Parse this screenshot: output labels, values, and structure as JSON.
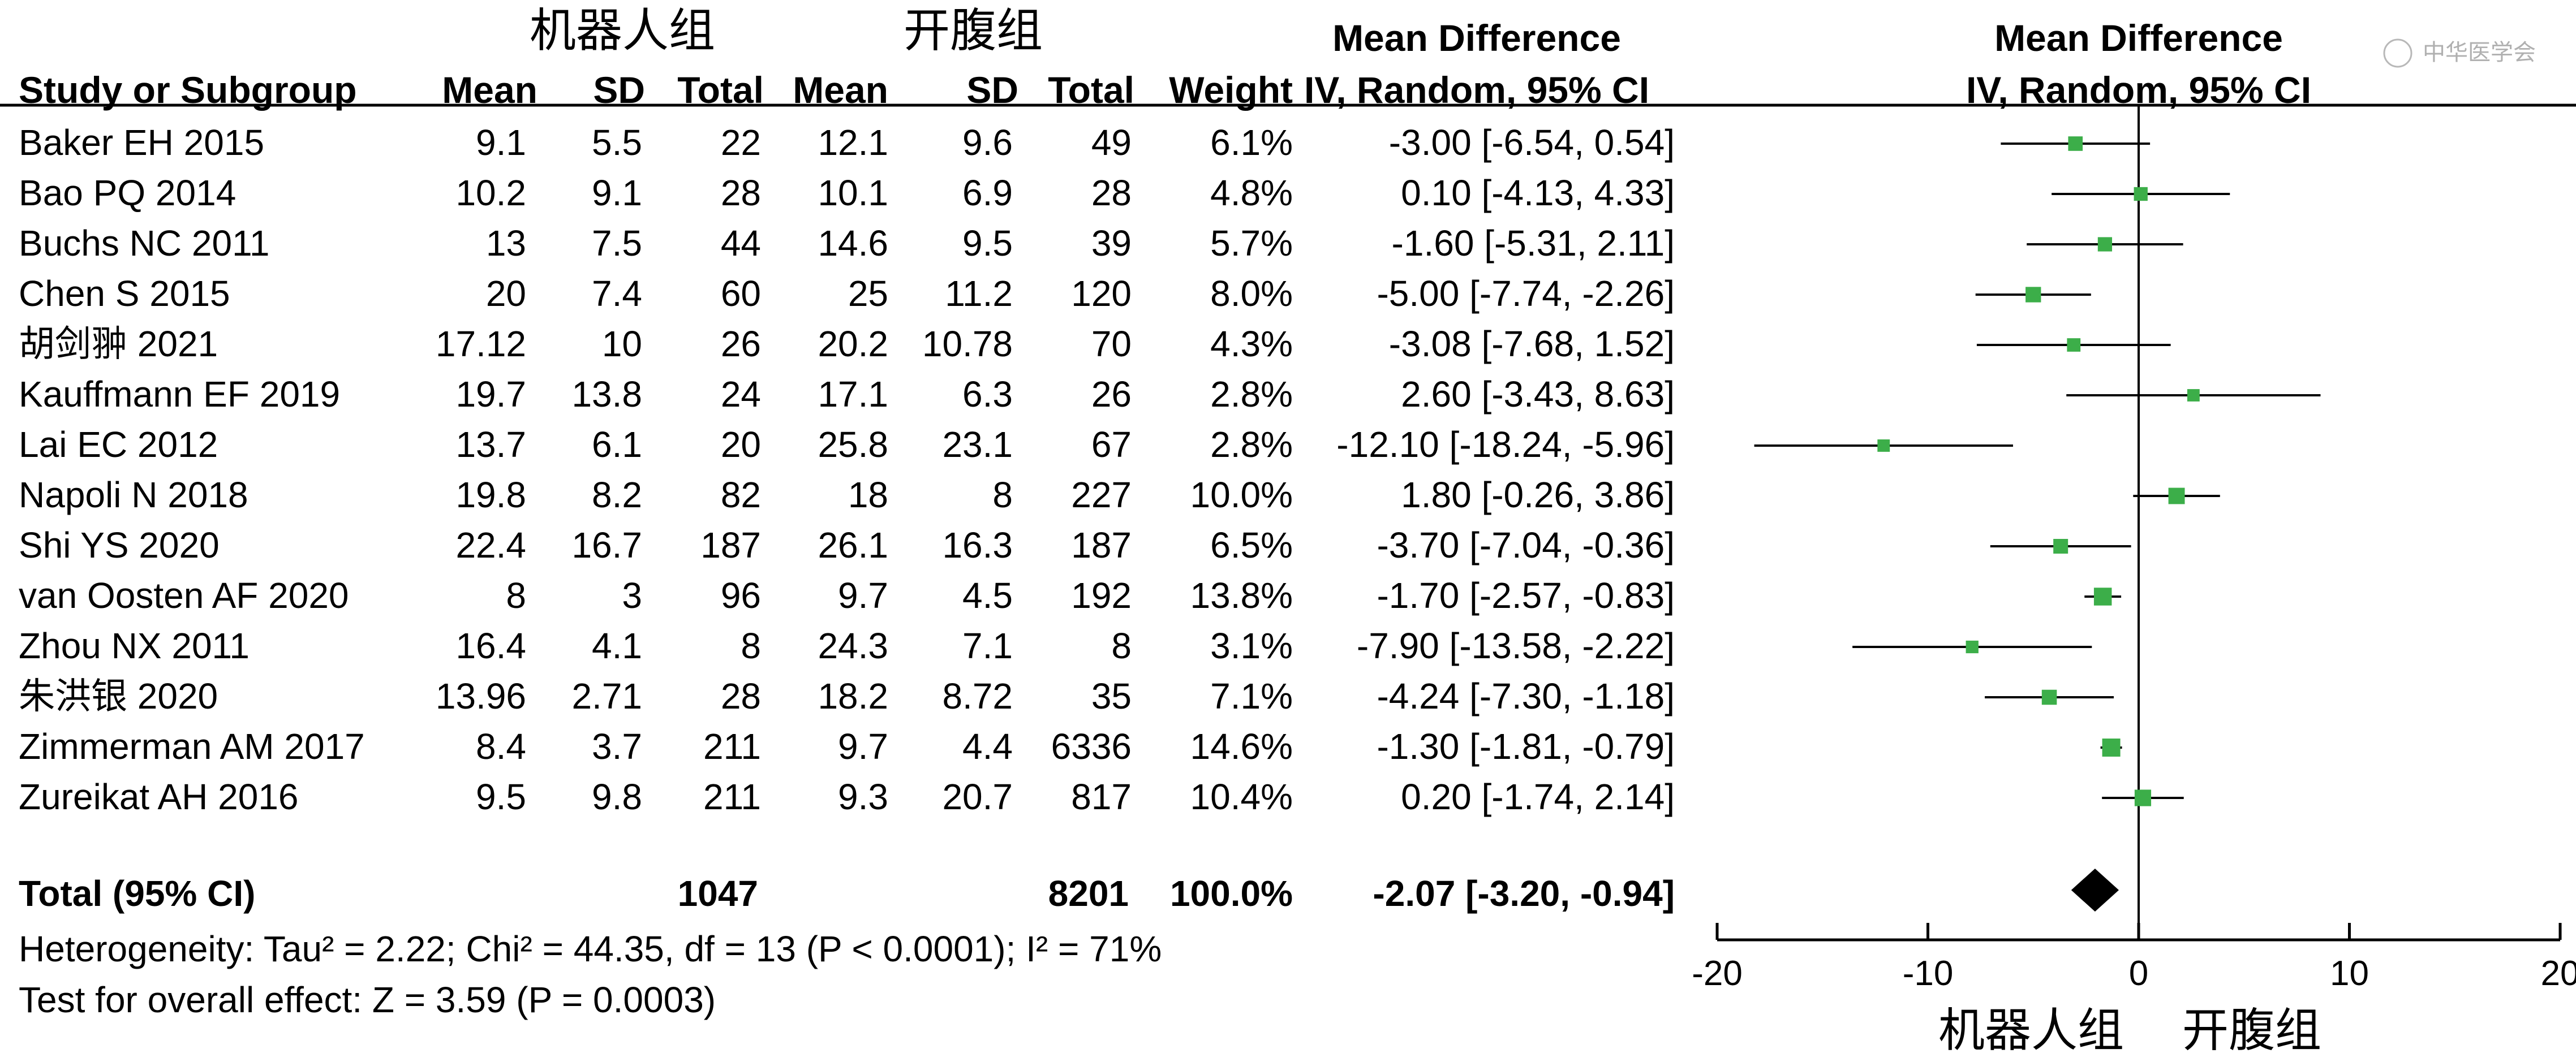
{
  "group_headers": {
    "experimental": "机器人组",
    "control": "开腹组"
  },
  "columns": {
    "study": "Study or Subgroup",
    "exp_mean": "Mean",
    "exp_sd": "SD",
    "exp_total": "Total",
    "ctl_mean": "Mean",
    "ctl_sd": "SD",
    "ctl_total": "Total",
    "weight": "Weight",
    "md_title": "Mean Difference",
    "md_method": "IV, Random, 95% CI",
    "plot_title": "Mean Difference",
    "plot_method": "IV, Random, 95% CI"
  },
  "watermark": "中华医学会",
  "rows": [
    {
      "study": "Baker EH 2015",
      "exp_mean": "9.1",
      "exp_sd": "5.5",
      "exp_total": "22",
      "ctl_mean": "12.1",
      "ctl_sd": "9.6",
      "ctl_total": "49",
      "weight": "6.1%",
      "ci_text": "-3.00 [-6.54, 0.54]"
    },
    {
      "study": "Bao PQ 2014",
      "exp_mean": "10.2",
      "exp_sd": "9.1",
      "exp_total": "28",
      "ctl_mean": "10.1",
      "ctl_sd": "6.9",
      "ctl_total": "28",
      "weight": "4.8%",
      "ci_text": "0.10 [-4.13, 4.33]"
    },
    {
      "study": "Buchs NC 2011",
      "exp_mean": "13",
      "exp_sd": "7.5",
      "exp_total": "44",
      "ctl_mean": "14.6",
      "ctl_sd": "9.5",
      "ctl_total": "39",
      "weight": "5.7%",
      "ci_text": "-1.60 [-5.31, 2.11]"
    },
    {
      "study": "Chen S 2015",
      "exp_mean": "20",
      "exp_sd": "7.4",
      "exp_total": "60",
      "ctl_mean": "25",
      "ctl_sd": "11.2",
      "ctl_total": "120",
      "weight": "8.0%",
      "ci_text": "-5.00 [-7.74, -2.26]"
    },
    {
      "study": "胡剑翀 2021",
      "exp_mean": "17.12",
      "exp_sd": "10",
      "exp_total": "26",
      "ctl_mean": "20.2",
      "ctl_sd": "10.78",
      "ctl_total": "70",
      "weight": "4.3%",
      "ci_text": "-3.08 [-7.68, 1.52]"
    },
    {
      "study": "Kauffmann EF 2019",
      "exp_mean": "19.7",
      "exp_sd": "13.8",
      "exp_total": "24",
      "ctl_mean": "17.1",
      "ctl_sd": "6.3",
      "ctl_total": "26",
      "weight": "2.8%",
      "ci_text": "2.60 [-3.43, 8.63]"
    },
    {
      "study": "Lai EC 2012",
      "exp_mean": "13.7",
      "exp_sd": "6.1",
      "exp_total": "20",
      "ctl_mean": "25.8",
      "ctl_sd": "23.1",
      "ctl_total": "67",
      "weight": "2.8%",
      "ci_text": "-12.10 [-18.24, -5.96]"
    },
    {
      "study": "Napoli N 2018",
      "exp_mean": "19.8",
      "exp_sd": "8.2",
      "exp_total": "82",
      "ctl_mean": "18",
      "ctl_sd": "8",
      "ctl_total": "227",
      "weight": "10.0%",
      "ci_text": "1.80 [-0.26, 3.86]"
    },
    {
      "study": "Shi YS 2020",
      "exp_mean": "22.4",
      "exp_sd": "16.7",
      "exp_total": "187",
      "ctl_mean": "26.1",
      "ctl_sd": "16.3",
      "ctl_total": "187",
      "weight": "6.5%",
      "ci_text": "-3.70 [-7.04, -0.36]"
    },
    {
      "study": "van Oosten AF 2020",
      "exp_mean": "8",
      "exp_sd": "3",
      "exp_total": "96",
      "ctl_mean": "9.7",
      "ctl_sd": "4.5",
      "ctl_total": "192",
      "weight": "13.8%",
      "ci_text": "-1.70 [-2.57, -0.83]"
    },
    {
      "study": "Zhou NX 2011",
      "exp_mean": "16.4",
      "exp_sd": "4.1",
      "exp_total": "8",
      "ctl_mean": "24.3",
      "ctl_sd": "7.1",
      "ctl_total": "8",
      "weight": "3.1%",
      "ci_text": "-7.90 [-13.58, -2.22]"
    },
    {
      "study": "朱洪银 2020",
      "exp_mean": "13.96",
      "exp_sd": "2.71",
      "exp_total": "28",
      "ctl_mean": "18.2",
      "ctl_sd": "8.72",
      "ctl_total": "35",
      "weight": "7.1%",
      "ci_text": "-4.24 [-7.30, -1.18]"
    },
    {
      "study": "Zimmerman AM 2017",
      "exp_mean": "8.4",
      "exp_sd": "3.7",
      "exp_total": "211",
      "ctl_mean": "9.7",
      "ctl_sd": "4.4",
      "ctl_total": "6336",
      "weight": "14.6%",
      "ci_text": "-1.30 [-1.81, -0.79]"
    },
    {
      "study": "Zureikat AH 2016",
      "exp_mean": "9.5",
      "exp_sd": "9.8",
      "exp_total": "211",
      "ctl_mean": "9.3",
      "ctl_sd": "20.7",
      "ctl_total": "817",
      "weight": "10.4%",
      "ci_text": "0.20 [-1.74, 2.14]"
    }
  ],
  "total": {
    "label": "Total (95% CI)",
    "exp_total": "1047",
    "ctl_total": "8201",
    "weight": "100.0%",
    "ci_text": "-2.07 [-3.20, -0.94]"
  },
  "heterogeneity": "Heterogeneity: Tau² = 2.22; Chi² = 44.35, df = 13 (P < 0.0001); I² = 71%",
  "overall_effect": "Test for overall effect: Z = 3.59 (P = 0.0003)",
  "axis_labels": {
    "left": "机器人组",
    "right": "开腹组"
  },
  "colors": {
    "marker": "#3cae49",
    "diamond": "#000000",
    "lines": "#000000"
  },
  "chart_data": {
    "type": "forest",
    "title": "",
    "xlabel": "",
    "ylabel": "",
    "xlim": [
      -20,
      20
    ],
    "xticks": [
      -20,
      -10,
      0,
      10,
      20
    ],
    "reference_line": 0,
    "studies": [
      {
        "name": "Baker EH 2015",
        "md": -3.0,
        "lo": -6.54,
        "hi": 0.54,
        "weight": 6.1
      },
      {
        "name": "Bao PQ 2014",
        "md": 0.1,
        "lo": -4.13,
        "hi": 4.33,
        "weight": 4.8
      },
      {
        "name": "Buchs NC 2011",
        "md": -1.6,
        "lo": -5.31,
        "hi": 2.11,
        "weight": 5.7
      },
      {
        "name": "Chen S 2015",
        "md": -5.0,
        "lo": -7.74,
        "hi": -2.26,
        "weight": 8.0
      },
      {
        "name": "胡剑翀 2021",
        "md": -3.08,
        "lo": -7.68,
        "hi": 1.52,
        "weight": 4.3
      },
      {
        "name": "Kauffmann EF 2019",
        "md": 2.6,
        "lo": -3.43,
        "hi": 8.63,
        "weight": 2.8
      },
      {
        "name": "Lai EC 2012",
        "md": -12.1,
        "lo": -18.24,
        "hi": -5.96,
        "weight": 2.8
      },
      {
        "name": "Napoli N 2018",
        "md": 1.8,
        "lo": -0.26,
        "hi": 3.86,
        "weight": 10.0
      },
      {
        "name": "Shi YS 2020",
        "md": -3.7,
        "lo": -7.04,
        "hi": -0.36,
        "weight": 6.5
      },
      {
        "name": "van Oosten AF 2020",
        "md": -1.7,
        "lo": -2.57,
        "hi": -0.83,
        "weight": 13.8
      },
      {
        "name": "Zhou NX 2011",
        "md": -7.9,
        "lo": -13.58,
        "hi": -2.22,
        "weight": 3.1
      },
      {
        "name": "朱洪银 2020",
        "md": -4.24,
        "lo": -7.3,
        "hi": -1.18,
        "weight": 7.1
      },
      {
        "name": "Zimmerman AM 2017",
        "md": -1.3,
        "lo": -1.81,
        "hi": -0.79,
        "weight": 14.6
      },
      {
        "name": "Zureikat AH 2016",
        "md": 0.2,
        "lo": -1.74,
        "hi": 2.14,
        "weight": 10.4
      }
    ],
    "pooled": {
      "md": -2.07,
      "lo": -3.2,
      "hi": -0.94,
      "weight": 100.0
    }
  }
}
